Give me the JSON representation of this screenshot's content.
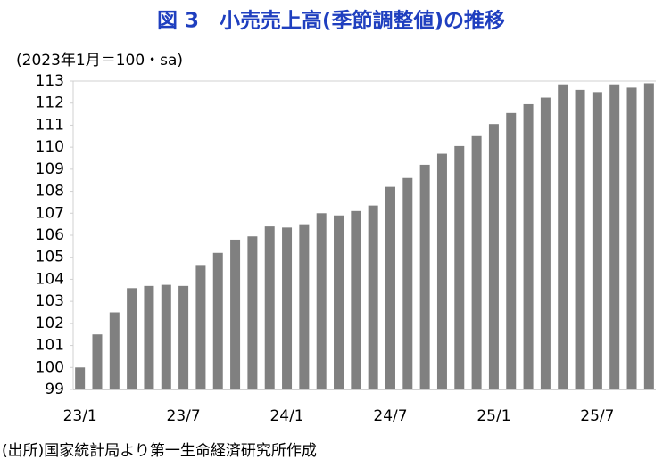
{
  "chart_data": {
    "type": "bar",
    "title": "図 3　小売売上高(季節調整値)の推移",
    "y_label": "(2023年1月＝100・sa)",
    "source": "(出所)国家統計局より第一生命経済研究所作成",
    "categories": [
      "23/1",
      null,
      null,
      null,
      null,
      null,
      "23/7",
      null,
      null,
      null,
      null,
      null,
      "24/1",
      null,
      null,
      null,
      null,
      null,
      "24/7",
      null,
      null,
      null,
      null,
      null,
      "25/1",
      null,
      null,
      null,
      null,
      null,
      "25/7",
      null,
      null,
      null
    ],
    "values": [
      100.0,
      101.5,
      102.5,
      103.6,
      103.7,
      103.75,
      103.7,
      104.65,
      105.2,
      105.8,
      105.95,
      106.4,
      106.35,
      106.5,
      107.0,
      106.9,
      107.1,
      107.35,
      108.2,
      108.6,
      109.2,
      109.7,
      110.05,
      110.5,
      111.05,
      111.55,
      111.95,
      112.25,
      112.85,
      112.6,
      112.5,
      112.85,
      112.7,
      112.9
    ],
    "color": "#808080",
    "ylim": [
      99,
      113
    ],
    "yticks": [
      99,
      100,
      101,
      102,
      103,
      104,
      105,
      106,
      107,
      108,
      109,
      110,
      111,
      112,
      113
    ],
    "grid": false
  }
}
